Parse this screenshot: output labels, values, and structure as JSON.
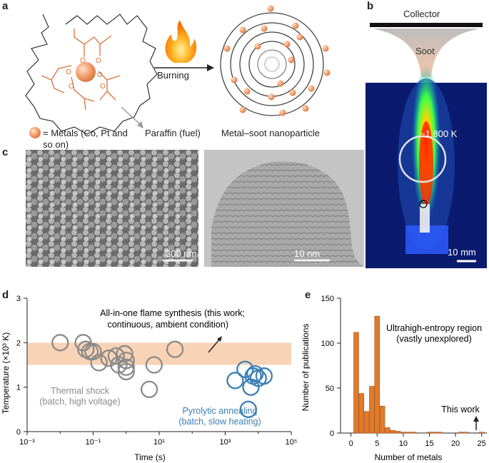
{
  "panels": {
    "a": {
      "label": "a",
      "burning_label": "Burning",
      "metals_legend": "= Metals (Co, Pt and so on)",
      "metals_legend_line1": "= Metals (Co, Pt and",
      "metals_legend_line2": "so on)",
      "fuel_label": "Paraffin (fuel)",
      "product_label": "Metal–soot nanoparticle",
      "ligand_atom": "O"
    },
    "b": {
      "label": "b",
      "collector_label": "Collector",
      "soot_label": "Soot",
      "temperature_label": "~1,800 K",
      "scale_label": "10 mm"
    },
    "c": {
      "label": "c",
      "sem_scale": "300 nm",
      "tem_scale": "10 nm"
    },
    "d": {
      "label": "d",
      "annotation_flame_line1": "All-in-one flame synthesis (this work;",
      "annotation_flame_line2": "continuous, ambient condition)",
      "annotation_shock_line1": "Thermal shock",
      "annotation_shock_line2": "(batch, high voltage)",
      "annotation_pyro_line1": "Pyrolytic annealing",
      "annotation_pyro_line2": "(batch, slow heating)"
    },
    "e": {
      "label": "e",
      "annotation_region_line1": "Ultrahigh-entropy region",
      "annotation_region_line2": "(vastly unexplored)",
      "annotation_this_work": "This work"
    }
  },
  "chart_data": [
    {
      "type": "scatter",
      "panel": "d",
      "xlabel": "Time (s)",
      "ylabel": "Temperature (×10³ K)",
      "xscale": "log",
      "xlim": [
        0.001,
        100000
      ],
      "ylim": [
        0,
        3
      ],
      "x_ticks": [
        "10⁻³",
        "10⁻¹",
        "10¹",
        "10³",
        "10⁵"
      ],
      "y_ticks": [
        "0",
        "1",
        "2",
        "3"
      ],
      "band": {
        "y_range": [
          1.5,
          2.0
        ],
        "color": "#f9d3b5"
      },
      "series": [
        {
          "name": "Thermal shock",
          "color": "#8a8a8a",
          "points": [
            [
              0.01,
              2.0
            ],
            [
              0.05,
              2.0
            ],
            [
              0.06,
              1.85
            ],
            [
              0.08,
              1.8
            ],
            [
              0.1,
              1.8
            ],
            [
              0.15,
              1.55
            ],
            [
              0.3,
              1.65
            ],
            [
              0.5,
              1.7
            ],
            [
              0.6,
              1.5
            ],
            [
              0.9,
              1.75
            ],
            [
              1.0,
              1.6
            ],
            [
              1.0,
              1.45
            ],
            [
              1.0,
              1.35
            ],
            [
              5,
              0.95
            ],
            [
              7,
              1.5
            ],
            [
              30,
              1.85
            ]
          ]
        },
        {
          "name": "Pyrolytic annealing",
          "color": "#3d7fb3",
          "points": [
            [
              2000,
              1.15
            ],
            [
              4000,
              1.4
            ],
            [
              5000,
              0.5
            ],
            [
              6000,
              1.0
            ],
            [
              7000,
              1.25
            ],
            [
              8000,
              1.3
            ],
            [
              10000,
              1.2
            ],
            [
              15000,
              1.25
            ]
          ]
        }
      ]
    },
    {
      "type": "bar",
      "panel": "e",
      "xlabel": "Number of metals",
      "ylabel": "Number of publications",
      "xlim": [
        -2,
        26
      ],
      "ylim": [
        0,
        150
      ],
      "x_ticks": [
        "0",
        "5",
        "10",
        "15",
        "20",
        "25"
      ],
      "y_ticks": [
        "0",
        "50",
        "100",
        "150"
      ],
      "color": "#e07b2b",
      "categories": [
        1,
        2,
        3,
        4,
        5,
        6,
        7,
        8,
        9,
        10,
        11,
        12,
        15,
        16,
        17,
        21,
        22,
        25
      ],
      "values": [
        112,
        44,
        24,
        52,
        130,
        30,
        6,
        3,
        2,
        1,
        1,
        1,
        1,
        1,
        1,
        1,
        1,
        1
      ]
    }
  ]
}
